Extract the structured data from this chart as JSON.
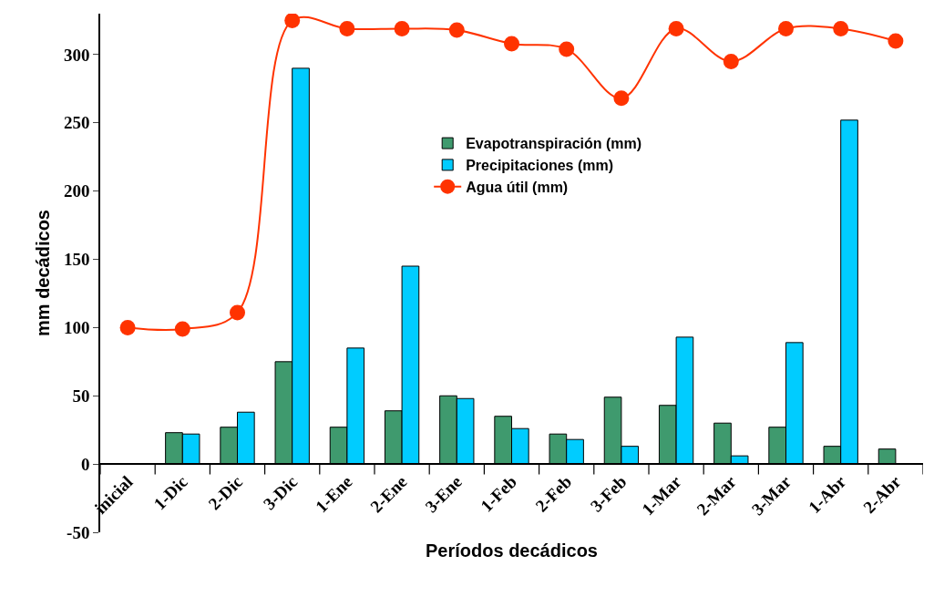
{
  "chart_data": {
    "type": "bar",
    "xlabel": "Períodos decádicos",
    "ylabel": "mm decádicos",
    "categories": [
      "inicial",
      "1-Dic",
      "2-Dic",
      "3-Dic",
      "1-Ene",
      "2-Ene",
      "3-Ene",
      "1-Feb",
      "2-Feb",
      "3-Feb",
      "1-Mar",
      "2-Mar",
      "3-Mar",
      "1-Abr",
      "2-Abr"
    ],
    "series": [
      {
        "name": "Evapotranspiración (mm)",
        "color": "#3f9a6e",
        "values": [
          null,
          23,
          27,
          75,
          27,
          39,
          50,
          35,
          22,
          49,
          43,
          30,
          27,
          13,
          11
        ]
      },
      {
        "name": "Precipitaciones (mm)",
        "color": "#00ccff",
        "values": [
          null,
          22,
          38,
          290,
          85,
          145,
          48,
          26,
          18,
          13,
          93,
          6,
          89,
          252,
          null
        ]
      },
      {
        "name": "Agua útil (mm)",
        "type": "line",
        "color": "#ff3300",
        "values": [
          100,
          99,
          111,
          325,
          319,
          319,
          318,
          308,
          304,
          268,
          319,
          295,
          319,
          319,
          310
        ]
      }
    ],
    "ylim": [
      -50,
      330
    ],
    "yticks": [
      -50,
      0,
      50,
      100,
      150,
      200,
      250,
      300
    ],
    "grid": false,
    "legend": "top",
    "marker": "circle",
    "line_style": "solid"
  }
}
